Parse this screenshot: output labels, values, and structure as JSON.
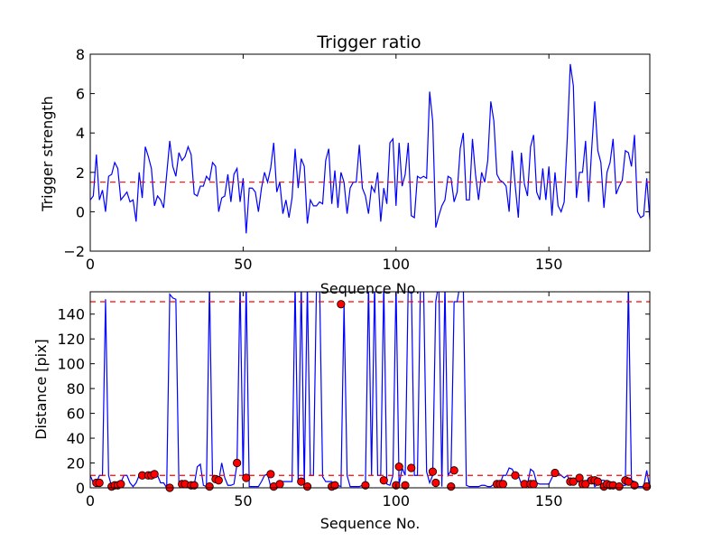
{
  "chart_data": [
    {
      "type": "line",
      "title": "Trigger ratio",
      "xlabel": "Sequence No.",
      "ylabel": "Trigger strength",
      "xlim": [
        0,
        183
      ],
      "ylim": [
        -2,
        8
      ],
      "xticks": [
        0,
        50,
        100,
        150
      ],
      "yticks": [
        -2,
        0,
        2,
        4,
        6,
        8
      ],
      "xtick_labels": [
        "0",
        "50",
        "100",
        "150"
      ],
      "ytick_labels": [
        "−2",
        "0",
        "2",
        "4",
        "6",
        "8"
      ],
      "grid": false,
      "series": [
        {
          "color": "#0000ff",
          "x_start": 0,
          "values": [
            0.6,
            0.8,
            2.9,
            0.6,
            1.1,
            0.0,
            1.8,
            1.9,
            2.5,
            2.2,
            0.6,
            0.8,
            1.0,
            0.5,
            0.6,
            -0.5,
            2.0,
            0.7,
            3.3,
            2.8,
            2.2,
            0.3,
            0.8,
            0.6,
            0.2,
            1.9,
            3.6,
            2.3,
            1.8,
            3.0,
            2.6,
            2.8,
            3.3,
            2.9,
            0.9,
            0.8,
            1.3,
            1.3,
            1.8,
            1.6,
            2.5,
            2.3,
            0.0,
            0.7,
            0.8,
            1.9,
            0.5,
            1.9,
            2.2,
            0.5,
            1.7,
            -1.1,
            1.2,
            1.2,
            1.0,
            0.0,
            1.2,
            2.0,
            1.5,
            2.2,
            3.5,
            1.0,
            1.5,
            -0.1,
            0.6,
            -0.3,
            0.7,
            3.2,
            1.2,
            2.7,
            2.3,
            -0.6,
            0.6,
            0.3,
            0.3,
            0.5,
            0.4,
            2.6,
            3.2,
            0.4,
            2.1,
            0.2,
            2.0,
            1.5,
            -0.1,
            1.2,
            1.5,
            1.5,
            3.4,
            1.2,
            0.8,
            -0.1,
            1.3,
            1.0,
            2.0,
            -0.5,
            1.2,
            0.4,
            3.5,
            3.7,
            0.3,
            3.5,
            1.3,
            1.9,
            3.5,
            -0.2,
            -0.3,
            1.8,
            1.7,
            1.8,
            1.7,
            6.1,
            4.6,
            -0.8,
            -0.2,
            0.3,
            0.6,
            1.8,
            1.7,
            0.5,
            1.0,
            3.2,
            4.0,
            0.6,
            0.6,
            3.7,
            1.9,
            0.6,
            2.0,
            1.5,
            2.6,
            5.6,
            4.6,
            1.9,
            1.6,
            1.5,
            1.3,
            0.0,
            3.1,
            1.3,
            -0.3,
            3.0,
            1.4,
            0.8,
            3.3,
            3.9,
            1.0,
            0.6,
            2.2,
            0.6,
            2.3,
            -0.2,
            2.0,
            0.3,
            0.0,
            0.5,
            3.7,
            7.5,
            6.4,
            0.7,
            2.0,
            2.0,
            3.6,
            0.5,
            3.2,
            5.6,
            3.1,
            2.5,
            0.2,
            2.0,
            2.5,
            3.7,
            0.9,
            1.3,
            1.6,
            3.1,
            3.0,
            2.3,
            3.9,
            0.0,
            -0.3,
            -0.2,
            1.7,
            -0.4
          ]
        }
      ],
      "threshold": {
        "y": 1.5,
        "color": "#ff0000",
        "style": "dashed"
      }
    },
    {
      "type": "line",
      "title": "",
      "xlabel": "Sequence No.",
      "ylabel": "Distance [pix]",
      "xlim": [
        0,
        183
      ],
      "ylim": [
        0,
        158
      ],
      "xticks": [
        0,
        50,
        100,
        150
      ],
      "yticks": [
        0,
        20,
        40,
        60,
        80,
        100,
        120,
        140
      ],
      "xtick_labels": [
        "0",
        "50",
        "100",
        "150"
      ],
      "ytick_labels": [
        "0",
        "20",
        "40",
        "60",
        "80",
        "100",
        "120",
        "140"
      ],
      "grid": false,
      "series": [
        {
          "color": "#0000ff",
          "x": [
            0,
            1,
            2,
            3,
            4,
            5,
            6,
            7,
            8,
            9,
            10,
            11,
            12,
            13,
            14,
            15,
            16,
            17,
            18,
            19,
            20,
            21,
            22,
            23,
            24,
            25,
            26,
            27,
            28,
            29,
            30,
            31,
            32,
            33,
            34,
            35,
            36,
            37,
            38,
            39,
            40,
            41,
            42,
            43,
            44,
            45,
            46,
            47,
            48,
            49,
            50,
            51,
            52,
            53,
            54,
            55,
            56,
            57,
            58,
            59,
            60,
            61,
            62,
            63,
            64,
            65,
            66,
            67,
            68,
            69,
            70,
            71,
            72,
            73,
            74,
            75,
            76,
            77,
            78,
            79,
            80,
            81,
            82,
            83,
            84,
            85,
            86,
            87,
            88,
            89,
            90,
            91,
            92,
            93,
            94,
            95,
            96,
            97,
            98,
            99,
            100,
            101,
            102,
            103,
            104,
            105,
            106,
            107,
            108,
            109,
            110,
            111,
            112,
            113,
            114,
            115,
            116,
            117,
            118,
            119,
            120,
            121,
            122,
            123,
            124,
            125,
            126,
            127,
            128,
            129,
            130,
            131,
            132,
            133,
            134,
            135,
            136,
            137,
            138,
            139,
            140,
            141,
            142,
            143,
            144,
            145,
            146,
            147,
            148,
            149,
            150,
            151,
            152,
            153,
            154,
            155,
            156,
            157,
            158,
            159,
            160,
            161,
            162,
            163,
            164,
            165,
            166,
            167,
            168,
            169,
            170,
            171,
            172,
            173,
            174,
            175,
            176,
            177,
            178,
            179,
            180,
            181,
            182,
            183
          ],
          "values": [
            10,
            4,
            4,
            10,
            10,
            152,
            10,
            1,
            2,
            3,
            4,
            10,
            10,
            4,
            1,
            4,
            10,
            10,
            10,
            11,
            10,
            11,
            10,
            4,
            4,
            0,
            156,
            153,
            152,
            2,
            3,
            3,
            3,
            3,
            2,
            17,
            19,
            2,
            1,
            165,
            6,
            6,
            5,
            20,
            8,
            2,
            2,
            3,
            19,
            165,
            8,
            165,
            1,
            1,
            1,
            1,
            5,
            10,
            11,
            1,
            1,
            3,
            3,
            5,
            5,
            5,
            5,
            165,
            5,
            165,
            1,
            165,
            10,
            10,
            165,
            165,
            9,
            5,
            5,
            5,
            1,
            2,
            1,
            148,
            10,
            1,
            1,
            1,
            1,
            2,
            2,
            165,
            10,
            165,
            10,
            10,
            165,
            3,
            2,
            10,
            165,
            2,
            16,
            10,
            165,
            165,
            10,
            10,
            165,
            165,
            13,
            4,
            10,
            150,
            165,
            1,
            165,
            10,
            14,
            150,
            150,
            165,
            165,
            2,
            1,
            1,
            1,
            1,
            2,
            2,
            1,
            1,
            3,
            3,
            3,
            10,
            10,
            16,
            15,
            10,
            10,
            3,
            3,
            3,
            15,
            13,
            4,
            3,
            3,
            3,
            3,
            8,
            13,
            12,
            10,
            8,
            10,
            5,
            5,
            5,
            5,
            4,
            4,
            8,
            8,
            1,
            3,
            6,
            6,
            5,
            1,
            1,
            1,
            1,
            2,
            2,
            165,
            6,
            5,
            1,
            1,
            1,
            14,
            0
          ]
        },
        {
          "name": "",
          "color": "#ff0000",
          "marker": "circle",
          "points": [
            [
              2,
              4
            ],
            [
              3,
              4
            ],
            [
              7,
              1
            ],
            [
              8,
              2
            ],
            [
              9,
              2
            ],
            [
              10,
              3
            ],
            [
              17,
              10
            ],
            [
              19,
              10
            ],
            [
              20,
              10
            ],
            [
              21,
              11
            ],
            [
              26,
              0
            ],
            [
              30,
              3
            ],
            [
              31,
              3
            ],
            [
              33,
              2
            ],
            [
              34,
              2
            ],
            [
              39,
              1
            ],
            [
              41,
              7
            ],
            [
              42,
              6
            ],
            [
              48,
              20
            ],
            [
              51,
              8
            ],
            [
              59,
              11
            ],
            [
              60,
              1
            ],
            [
              62,
              3
            ],
            [
              69,
              5
            ],
            [
              71,
              1
            ],
            [
              79,
              1
            ],
            [
              80,
              2
            ],
            [
              82,
              148
            ],
            [
              90,
              2
            ],
            [
              96,
              6
            ],
            [
              100,
              2
            ],
            [
              101,
              17
            ],
            [
              103,
              2
            ],
            [
              105,
              16
            ],
            [
              112,
              13
            ],
            [
              113,
              4
            ],
            [
              118,
              1
            ],
            [
              119,
              14
            ],
            [
              133,
              3
            ],
            [
              134,
              3
            ],
            [
              135,
              3
            ],
            [
              139,
              10
            ],
            [
              142,
              3
            ],
            [
              144,
              3
            ],
            [
              145,
              3
            ],
            [
              152,
              12
            ],
            [
              157,
              5
            ],
            [
              158,
              5
            ],
            [
              160,
              8
            ],
            [
              161,
              3
            ],
            [
              162,
              3
            ],
            [
              164,
              6
            ],
            [
              165,
              6
            ],
            [
              166,
              5
            ],
            [
              168,
              1
            ],
            [
              169,
              3
            ],
            [
              170,
              2
            ],
            [
              171,
              2
            ],
            [
              173,
              1
            ],
            [
              175,
              6
            ],
            [
              176,
              5
            ],
            [
              178,
              2
            ],
            [
              182,
              1
            ]
          ]
        }
      ],
      "thresholds": [
        {
          "y": 150,
          "color": "#ff0000",
          "style": "dashed"
        },
        {
          "y": 10,
          "color": "#ff0000",
          "style": "dashed"
        }
      ]
    }
  ]
}
